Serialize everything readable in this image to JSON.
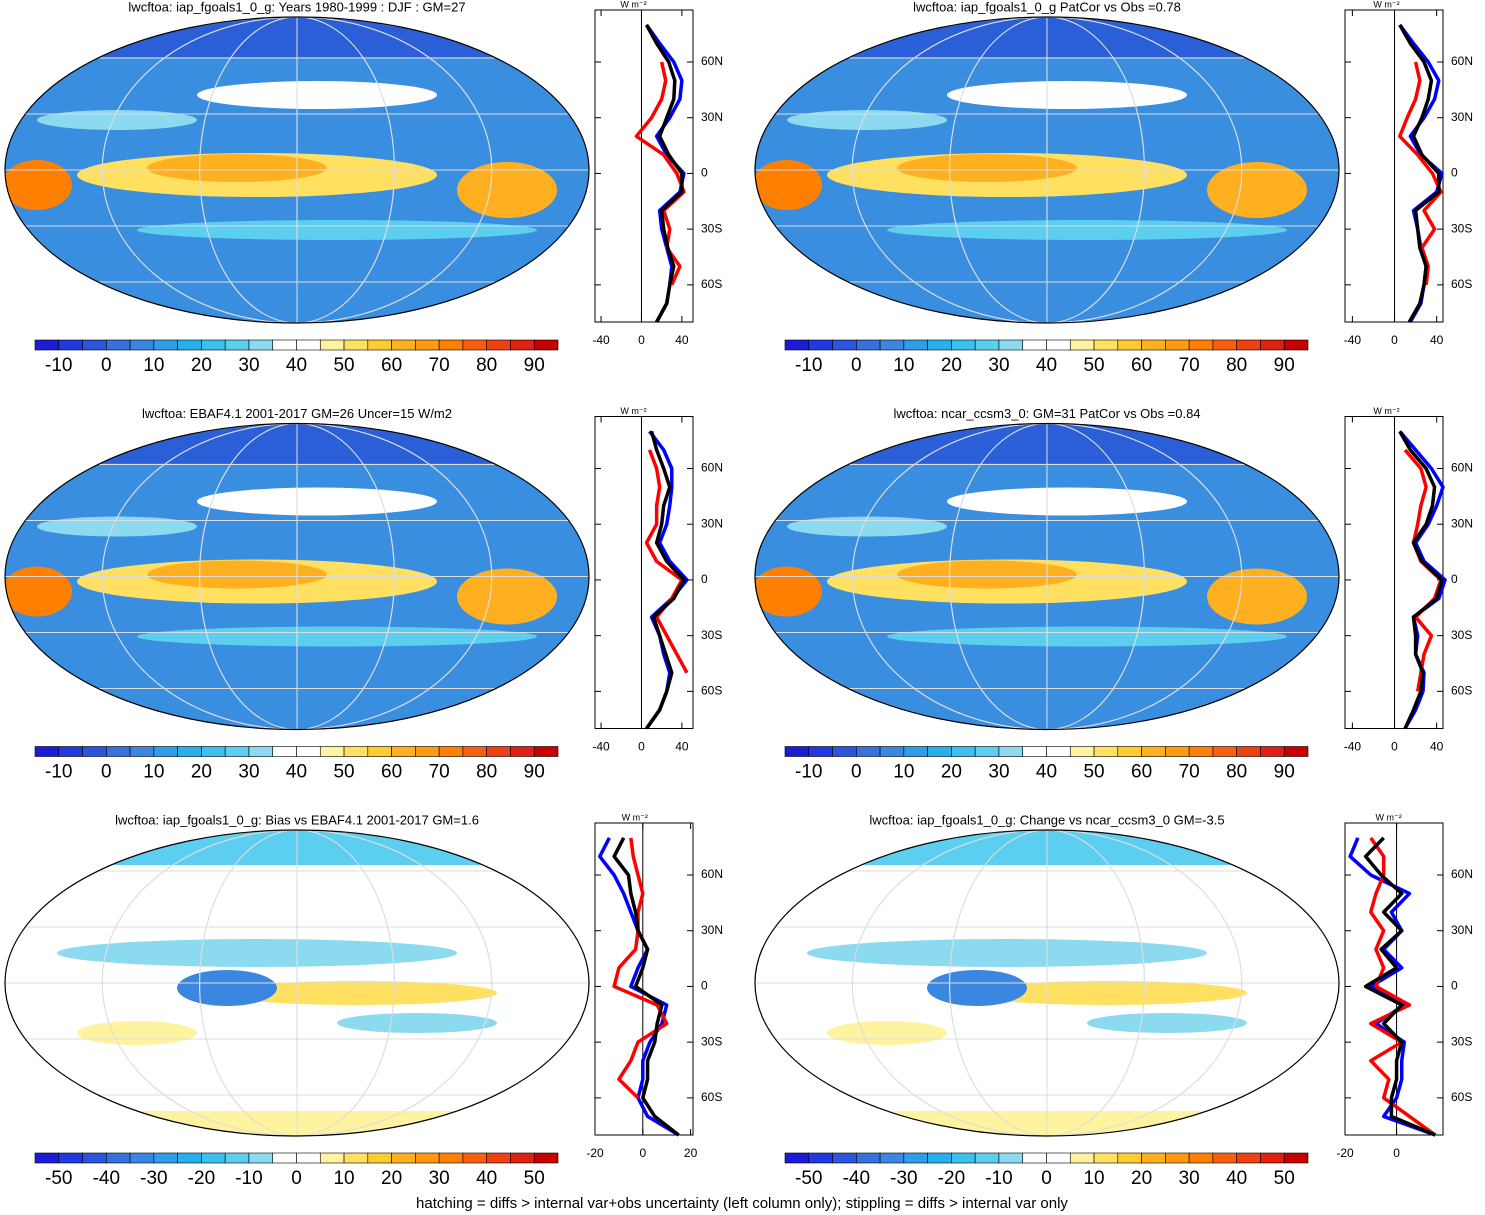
{
  "chart_data": [
    {
      "type": "map",
      "title": "lwcftoa: iap_fgoals1_0_g: Years 1980-1999 : DJF : GM=27",
      "colorbar": {
        "lim": [
          -15,
          95
        ],
        "ticks": [
          -10,
          0,
          10,
          20,
          30,
          40,
          50,
          60,
          70,
          80,
          90
        ],
        "colors": [
          "#1c1cd8",
          "#1f3be0",
          "#2a55dc",
          "#3870dc",
          "#3a86e0",
          "#2f9ee6",
          "#27b0ec",
          "#3cc0ee",
          "#5ccff0",
          "#8cdaf0",
          "#ffffff",
          "#ffffff",
          "#fff3a0",
          "#ffe060",
          "#ffcc30",
          "#ffb020",
          "#ff9a10",
          "#ff8000",
          "#f86010",
          "#ee4010",
          "#e02010",
          "#c80000"
        ]
      },
      "profile": {
        "type": "line",
        "unit": "W m⁻²",
        "xlim": [
          -46,
          51
        ],
        "xticks": [
          -40,
          0,
          40
        ],
        "ylim": [
          -80,
          88
        ],
        "yticks": [
          {
            "value": 60,
            "label": "60N"
          },
          {
            "value": 30,
            "label": "30N"
          },
          0,
          {
            "value": -30,
            "label": "30S"
          },
          {
            "value": -60,
            "label": "60S"
          }
        ],
        "y": [
          -80,
          -70,
          -60,
          -50,
          -40,
          -30,
          -20,
          -10,
          0,
          10,
          20,
          30,
          40,
          50,
          60,
          70,
          80
        ],
        "series": [
          {
            "color": "#0000ff",
            "values": [
              15,
              25,
              28,
              30,
              25,
              20,
              18,
              38,
              42,
              25,
              15,
              28,
              38,
              40,
              32,
              18,
              5
            ]
          },
          {
            "color": "#ff0000",
            "values": [
              null,
              null,
              30,
              38,
              25,
              28,
              22,
              42,
              35,
              22,
              -5,
              10,
              20,
              24,
              20,
              null,
              null
            ]
          },
          {
            "color": "#000000",
            "values": [
              15,
              25,
              28,
              32,
              26,
              22,
              20,
              40,
              40,
              27,
              18,
              25,
              32,
              33,
              27,
              15,
              5
            ]
          }
        ]
      }
    },
    {
      "type": "map",
      "title": "lwcftoa: iap_fgoals1_0_g PatCor vs Obs =0.78",
      "colorbar": {
        "lim": [
          -15,
          95
        ],
        "ticks": [
          -10,
          0,
          10,
          20,
          30,
          40,
          50,
          60,
          70,
          80,
          90
        ],
        "colors": [
          "#1c1cd8",
          "#1f3be0",
          "#2a55dc",
          "#3870dc",
          "#3a86e0",
          "#2f9ee6",
          "#27b0ec",
          "#3cc0ee",
          "#5ccff0",
          "#8cdaf0",
          "#ffffff",
          "#ffffff",
          "#fff3a0",
          "#ffe060",
          "#ffcc30",
          "#ffb020",
          "#ff9a10",
          "#ff8000",
          "#f86010",
          "#ee4010",
          "#e02010",
          "#c80000"
        ]
      },
      "profile": {
        "type": "line",
        "unit": "W m⁻²",
        "xlim": [
          -47,
          46
        ],
        "xticks": [
          -40,
          0,
          40
        ],
        "ylim": [
          -80,
          88
        ],
        "yticks": [
          {
            "value": 60,
            "label": "60N"
          },
          {
            "value": 30,
            "label": "30N"
          },
          0,
          {
            "value": -30,
            "label": "30S"
          },
          {
            "value": -60,
            "label": "60S"
          }
        ],
        "y": [
          -80,
          -70,
          -60,
          -50,
          -40,
          -30,
          -20,
          -10,
          0,
          10,
          20,
          30,
          40,
          50,
          60,
          70,
          80
        ],
        "series": [
          {
            "color": "#0000ff",
            "values": [
              15,
              25,
              28,
              30,
              25,
              22,
              18,
              40,
              45,
              25,
              15,
              28,
              38,
              42,
              32,
              18,
              5
            ]
          },
          {
            "color": "#ff0000",
            "values": [
              null,
              null,
              30,
              32,
              26,
              38,
              28,
              44,
              36,
              22,
              5,
              12,
              20,
              24,
              20,
              null,
              null
            ]
          },
          {
            "color": "#000000",
            "values": [
              14,
              24,
              28,
              30,
              24,
              22,
              20,
              42,
              42,
              26,
              18,
              26,
              32,
              35,
              28,
              15,
              5
            ]
          }
        ]
      }
    },
    {
      "type": "map",
      "title": "lwcftoa: EBAF4.1 2001-2017 GM=26 Uncer=15 W/m2",
      "colorbar": {
        "lim": [
          -15,
          95
        ],
        "ticks": [
          -10,
          0,
          10,
          20,
          30,
          40,
          50,
          60,
          70,
          80,
          90
        ],
        "colors": [
          "#1c1cd8",
          "#1f3be0",
          "#2a55dc",
          "#3870dc",
          "#3a86e0",
          "#2f9ee6",
          "#27b0ec",
          "#3cc0ee",
          "#5ccff0",
          "#8cdaf0",
          "#ffffff",
          "#ffffff",
          "#fff3a0",
          "#ffe060",
          "#ffcc30",
          "#ffb020",
          "#ff9a10",
          "#ff8000",
          "#f86010",
          "#ee4010",
          "#e02010",
          "#c80000"
        ]
      },
      "profile": {
        "type": "line",
        "unit": "W m⁻²",
        "xlim": [
          -46,
          51
        ],
        "xticks": [
          -40,
          0,
          40
        ],
        "ylim": [
          -80,
          88
        ],
        "yticks": [
          {
            "value": 60,
            "label": "60N"
          },
          {
            "value": 30,
            "label": "30N"
          },
          0,
          {
            "value": -30,
            "label": "30S"
          },
          {
            "value": -60,
            "label": "60S"
          }
        ],
        "y": [
          -80,
          -70,
          -60,
          -50,
          -40,
          -30,
          -20,
          -10,
          0,
          10,
          20,
          30,
          40,
          50,
          60,
          70,
          80
        ],
        "series": [
          {
            "color": "#0000ff",
            "values": [
              5,
              18,
              25,
              28,
              22,
              18,
              10,
              30,
              45,
              28,
              18,
              25,
              28,
              30,
              30,
              22,
              8
            ]
          },
          {
            "color": "#ff0000",
            "values": [
              null,
              null,
              null,
              45,
              35,
              25,
              15,
              30,
              40,
              15,
              5,
              15,
              15,
              18,
              15,
              8,
              null
            ]
          },
          {
            "color": "#000000",
            "values": [
              5,
              18,
              25,
              30,
              24,
              18,
              12,
              32,
              42,
              25,
              15,
              20,
              22,
              28,
              22,
              15,
              10
            ]
          }
        ]
      }
    },
    {
      "type": "map",
      "title": "lwcftoa: ncar_ccsm3_0: GM=31 PatCor vs Obs =0.84",
      "colorbar": {
        "lim": [
          -15,
          95
        ],
        "ticks": [
          -10,
          0,
          10,
          20,
          30,
          40,
          50,
          60,
          70,
          80,
          90
        ],
        "colors": [
          "#1c1cd8",
          "#1f3be0",
          "#2a55dc",
          "#3870dc",
          "#3a86e0",
          "#2f9ee6",
          "#27b0ec",
          "#3cc0ee",
          "#5ccff0",
          "#8cdaf0",
          "#ffffff",
          "#ffffff",
          "#fff3a0",
          "#ffe060",
          "#ffcc30",
          "#ffb020",
          "#ff9a10",
          "#ff8000",
          "#f86010",
          "#ee4010",
          "#e02010",
          "#c80000"
        ]
      },
      "profile": {
        "type": "line",
        "unit": "W m⁻²",
        "xlim": [
          -47,
          46
        ],
        "xticks": [
          -40,
          0,
          40
        ],
        "ylim": [
          -80,
          88
        ],
        "yticks": [
          {
            "value": 60,
            "label": "60N"
          },
          {
            "value": 30,
            "label": "30N"
          },
          0,
          {
            "value": -30,
            "label": "30S"
          },
          {
            "value": -60,
            "label": "60S"
          }
        ],
        "y": [
          -80,
          -70,
          -60,
          -50,
          -40,
          -30,
          -20,
          -10,
          0,
          10,
          20,
          30,
          40,
          50,
          60,
          70,
          80
        ],
        "series": [
          {
            "color": "#0000ff",
            "values": [
              10,
              20,
              27,
              28,
              20,
              22,
              18,
              42,
              48,
              28,
              20,
              32,
              40,
              46,
              35,
              20,
              5
            ]
          },
          {
            "color": "#ff0000",
            "values": [
              null,
              null,
              22,
              25,
              28,
              35,
              20,
              38,
              44,
              25,
              18,
              22,
              25,
              30,
              25,
              10,
              null
            ]
          },
          {
            "color": "#000000",
            "values": [
              10,
              18,
              25,
              27,
              20,
              20,
              18,
              40,
              45,
              26,
              18,
              30,
              36,
              38,
              30,
              15,
              5
            ]
          }
        ]
      }
    },
    {
      "type": "map",
      "title": "lwcftoa: iap_fgoals1_0_g: Bias vs EBAF4.1 2001-2017 GM=1.6",
      "colorbar": {
        "lim": [
          -55,
          55
        ],
        "ticks": [
          -50,
          -40,
          -30,
          -20,
          -10,
          0,
          10,
          20,
          30,
          40,
          50
        ],
        "colors": [
          "#1c1cd8",
          "#1f3be0",
          "#2a55dc",
          "#3870dc",
          "#3a86e0",
          "#2f9ee6",
          "#27b0ec",
          "#3cc0ee",
          "#5ccff0",
          "#8cdaf0",
          "#ffffff",
          "#ffffff",
          "#fff3a0",
          "#ffe060",
          "#ffcc30",
          "#ffb020",
          "#ff9a10",
          "#ff8000",
          "#f86010",
          "#ee4010",
          "#e02010",
          "#c80000"
        ]
      },
      "profile": {
        "type": "line",
        "unit": "W m⁻²",
        "xlim": [
          -20,
          21
        ],
        "xticks": [
          -20,
          0,
          20
        ],
        "ylim": [
          -80,
          88
        ],
        "yticks": [
          {
            "value": 60,
            "label": "60N"
          },
          {
            "value": 30,
            "label": "30N"
          },
          0,
          {
            "value": -30,
            "label": "30S"
          },
          {
            "value": -60,
            "label": "60S"
          }
        ],
        "y": [
          -80,
          -70,
          -60,
          -50,
          -40,
          -30,
          -20,
          -10,
          0,
          10,
          20,
          30,
          40,
          50,
          60,
          70,
          80
        ],
        "series": [
          {
            "color": "#0000ff",
            "values": [
              15,
              2,
              -2,
              0,
              0,
              3,
              8,
              10,
              -5,
              -2,
              2,
              -2,
              -5,
              -8,
              -12,
              -18,
              -14
            ]
          },
          {
            "color": "#ff0000",
            "values": [
              null,
              null,
              -2,
              -10,
              -5,
              -2,
              10,
              6,
              -12,
              -10,
              -3,
              -2,
              -2,
              0,
              -2,
              -4,
              -5
            ]
          },
          {
            "color": "#000000",
            "values": [
              15,
              5,
              0,
              2,
              2,
              5,
              6,
              8,
              -3,
              0,
              2,
              -2,
              -3,
              -5,
              -6,
              -12,
              -8
            ]
          }
        ]
      }
    },
    {
      "type": "map",
      "title": "lwcftoa: iap_fgoals1_0_g: Change vs ncar_ccsm3_0 GM=-3.5",
      "colorbar": {
        "lim": [
          -55,
          55
        ],
        "ticks": [
          -50,
          -40,
          -30,
          -20,
          -10,
          0,
          10,
          20,
          30,
          40,
          50
        ],
        "colors": [
          "#1c1cd8",
          "#1f3be0",
          "#2a55dc",
          "#3870dc",
          "#3a86e0",
          "#2f9ee6",
          "#27b0ec",
          "#3cc0ee",
          "#5ccff0",
          "#8cdaf0",
          "#ffffff",
          "#ffffff",
          "#fff3a0",
          "#ffe060",
          "#ffcc30",
          "#ffb020",
          "#ff9a10",
          "#ff8000",
          "#f86010",
          "#ee4010",
          "#e02010",
          "#c80000"
        ]
      },
      "profile": {
        "type": "line",
        "unit": "W m⁻²",
        "xlim": [
          -20,
          18
        ],
        "xticks": [
          -20,
          0
        ],
        "ylim": [
          -80,
          88
        ],
        "yticks": [
          {
            "value": 60,
            "label": "60N"
          },
          {
            "value": 30,
            "label": "30N"
          },
          0,
          {
            "value": -30,
            "label": "30S"
          },
          {
            "value": -60,
            "label": "60S"
          }
        ],
        "y": [
          -80,
          -70,
          -60,
          -50,
          -40,
          -30,
          -20,
          -10,
          0,
          10,
          20,
          30,
          40,
          50,
          60,
          70,
          80
        ],
        "series": [
          {
            "color": "#0000ff",
            "values": [
              15,
              -5,
              0,
              2,
              2,
              3,
              -8,
              3,
              -10,
              2,
              -5,
              2,
              -2,
              5,
              -10,
              -18,
              -15
            ]
          },
          {
            "color": "#ff0000",
            "values": [
              15,
              5,
              -5,
              -3,
              -10,
              2,
              -10,
              5,
              -8,
              -5,
              -8,
              -5,
              -10,
              -8,
              -5,
              -5,
              -10
            ]
          },
          {
            "color": "#000000",
            "values": [
              15,
              -2,
              -2,
              0,
              0,
              2,
              -5,
              2,
              -12,
              0,
              -6,
              2,
              -5,
              2,
              -6,
              -12,
              -5
            ]
          }
        ]
      }
    }
  ],
  "footnote": "hatching = diffs > internal var+obs uncertainty (left column only); stippling = diffs > internal var only"
}
